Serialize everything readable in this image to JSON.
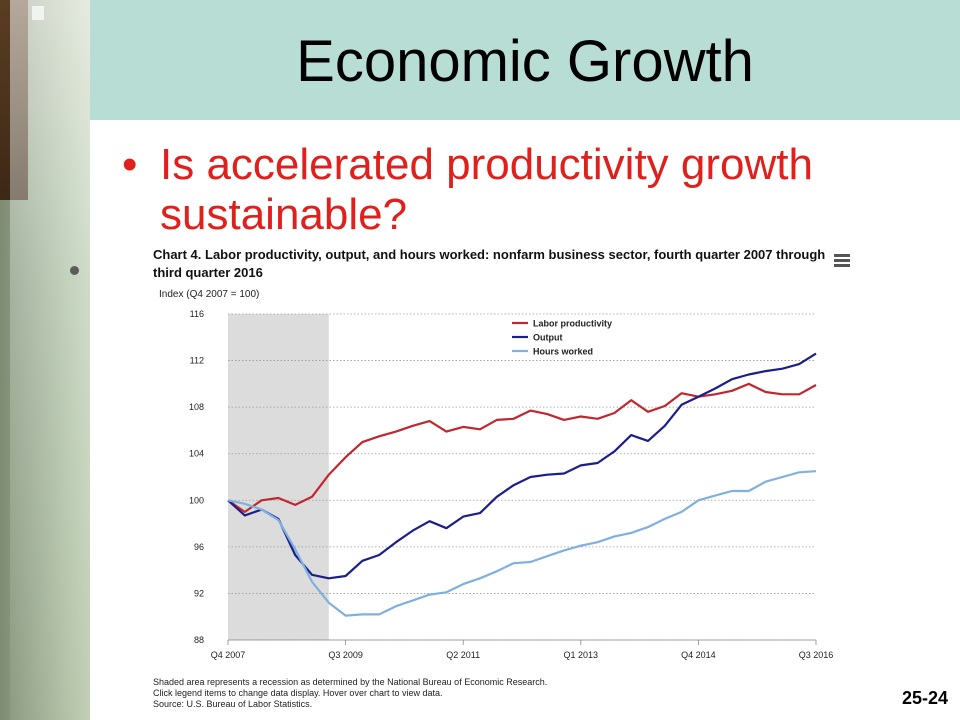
{
  "slide": {
    "title": "Economic Growth",
    "bullet": "Is accelerated productivity growth sustainable?",
    "number": "25-24",
    "bullet_color": "#e0201c",
    "title_band_color": "#b7ddd4"
  },
  "chart_data": {
    "type": "line",
    "title": "Chart 4. Labor productivity, output, and hours worked: nonfarm business sector, fourth quarter 2007 through third quarter 2016",
    "ylabel": "Index (Q4 2007 = 100)",
    "ylim": [
      88,
      116
    ],
    "yticks": [
      88,
      92,
      96,
      100,
      104,
      108,
      112,
      116
    ],
    "x": [
      "Q4 2007",
      "Q1 2008",
      "Q2 2008",
      "Q3 2008",
      "Q4 2008",
      "Q1 2009",
      "Q2 2009",
      "Q3 2009",
      "Q4 2009",
      "Q1 2010",
      "Q2 2010",
      "Q3 2010",
      "Q4 2010",
      "Q1 2011",
      "Q2 2011",
      "Q3 2011",
      "Q4 2011",
      "Q1 2012",
      "Q2 2012",
      "Q3 2012",
      "Q4 2012",
      "Q1 2013",
      "Q2 2013",
      "Q3 2013",
      "Q4 2013",
      "Q1 2014",
      "Q2 2014",
      "Q3 2014",
      "Q4 2014",
      "Q1 2015",
      "Q2 2015",
      "Q3 2015",
      "Q4 2015",
      "Q1 2016",
      "Q2 2016",
      "Q3 2016"
    ],
    "xtick_labels": [
      "Q4 2007",
      "Q3 2009",
      "Q2 2011",
      "Q1 2013",
      "Q4 2014",
      "Q3 2016"
    ],
    "shaded_region": [
      "Q4 2007",
      "Q2 2009"
    ],
    "legend_position": "top-center",
    "grid": true,
    "series": [
      {
        "name": "Labor productivity",
        "color": "#c1272d",
        "values": [
          100.0,
          99.0,
          100.0,
          100.2,
          99.6,
          100.3,
          102.2,
          103.7,
          105.0,
          105.5,
          105.9,
          106.4,
          106.8,
          105.9,
          106.3,
          106.1,
          106.9,
          107.0,
          107.7,
          107.4,
          106.9,
          107.2,
          107.0,
          107.5,
          108.6,
          107.6,
          108.1,
          109.2,
          108.9,
          109.1,
          109.4,
          110.0,
          109.3,
          109.1,
          109.1,
          109.9
        ]
      },
      {
        "name": "Output",
        "color": "#1b1f8a",
        "values": [
          100.0,
          98.7,
          99.2,
          98.4,
          95.3,
          93.6,
          93.3,
          93.5,
          94.8,
          95.3,
          96.4,
          97.4,
          98.2,
          97.6,
          98.6,
          98.9,
          100.3,
          101.3,
          102.0,
          102.2,
          102.3,
          103.0,
          103.2,
          104.2,
          105.6,
          105.1,
          106.4,
          108.2,
          108.9,
          109.6,
          110.4,
          110.8,
          111.1,
          111.3,
          111.7,
          112.6
        ]
      },
      {
        "name": "Hours worked",
        "color": "#7fb0e0",
        "values": [
          100.0,
          99.7,
          99.2,
          98.3,
          95.8,
          93.0,
          91.2,
          90.1,
          90.2,
          90.2,
          90.9,
          91.4,
          91.9,
          92.1,
          92.8,
          93.3,
          93.9,
          94.6,
          94.7,
          95.2,
          95.7,
          96.1,
          96.4,
          96.9,
          97.2,
          97.7,
          98.4,
          99.0,
          100.0,
          100.4,
          100.8,
          100.8,
          101.6,
          102.0,
          102.4,
          102.5
        ]
      }
    ]
  },
  "footnotes": [
    "Shaded area represents a recession as determined by the National Bureau of Economic Research.",
    "Click legend items to change data display. Hover over chart to view data.",
    "Source: U.S. Bureau of Labor Statistics."
  ],
  "icons": {
    "chart_menu": "hamburger-menu-icon"
  }
}
